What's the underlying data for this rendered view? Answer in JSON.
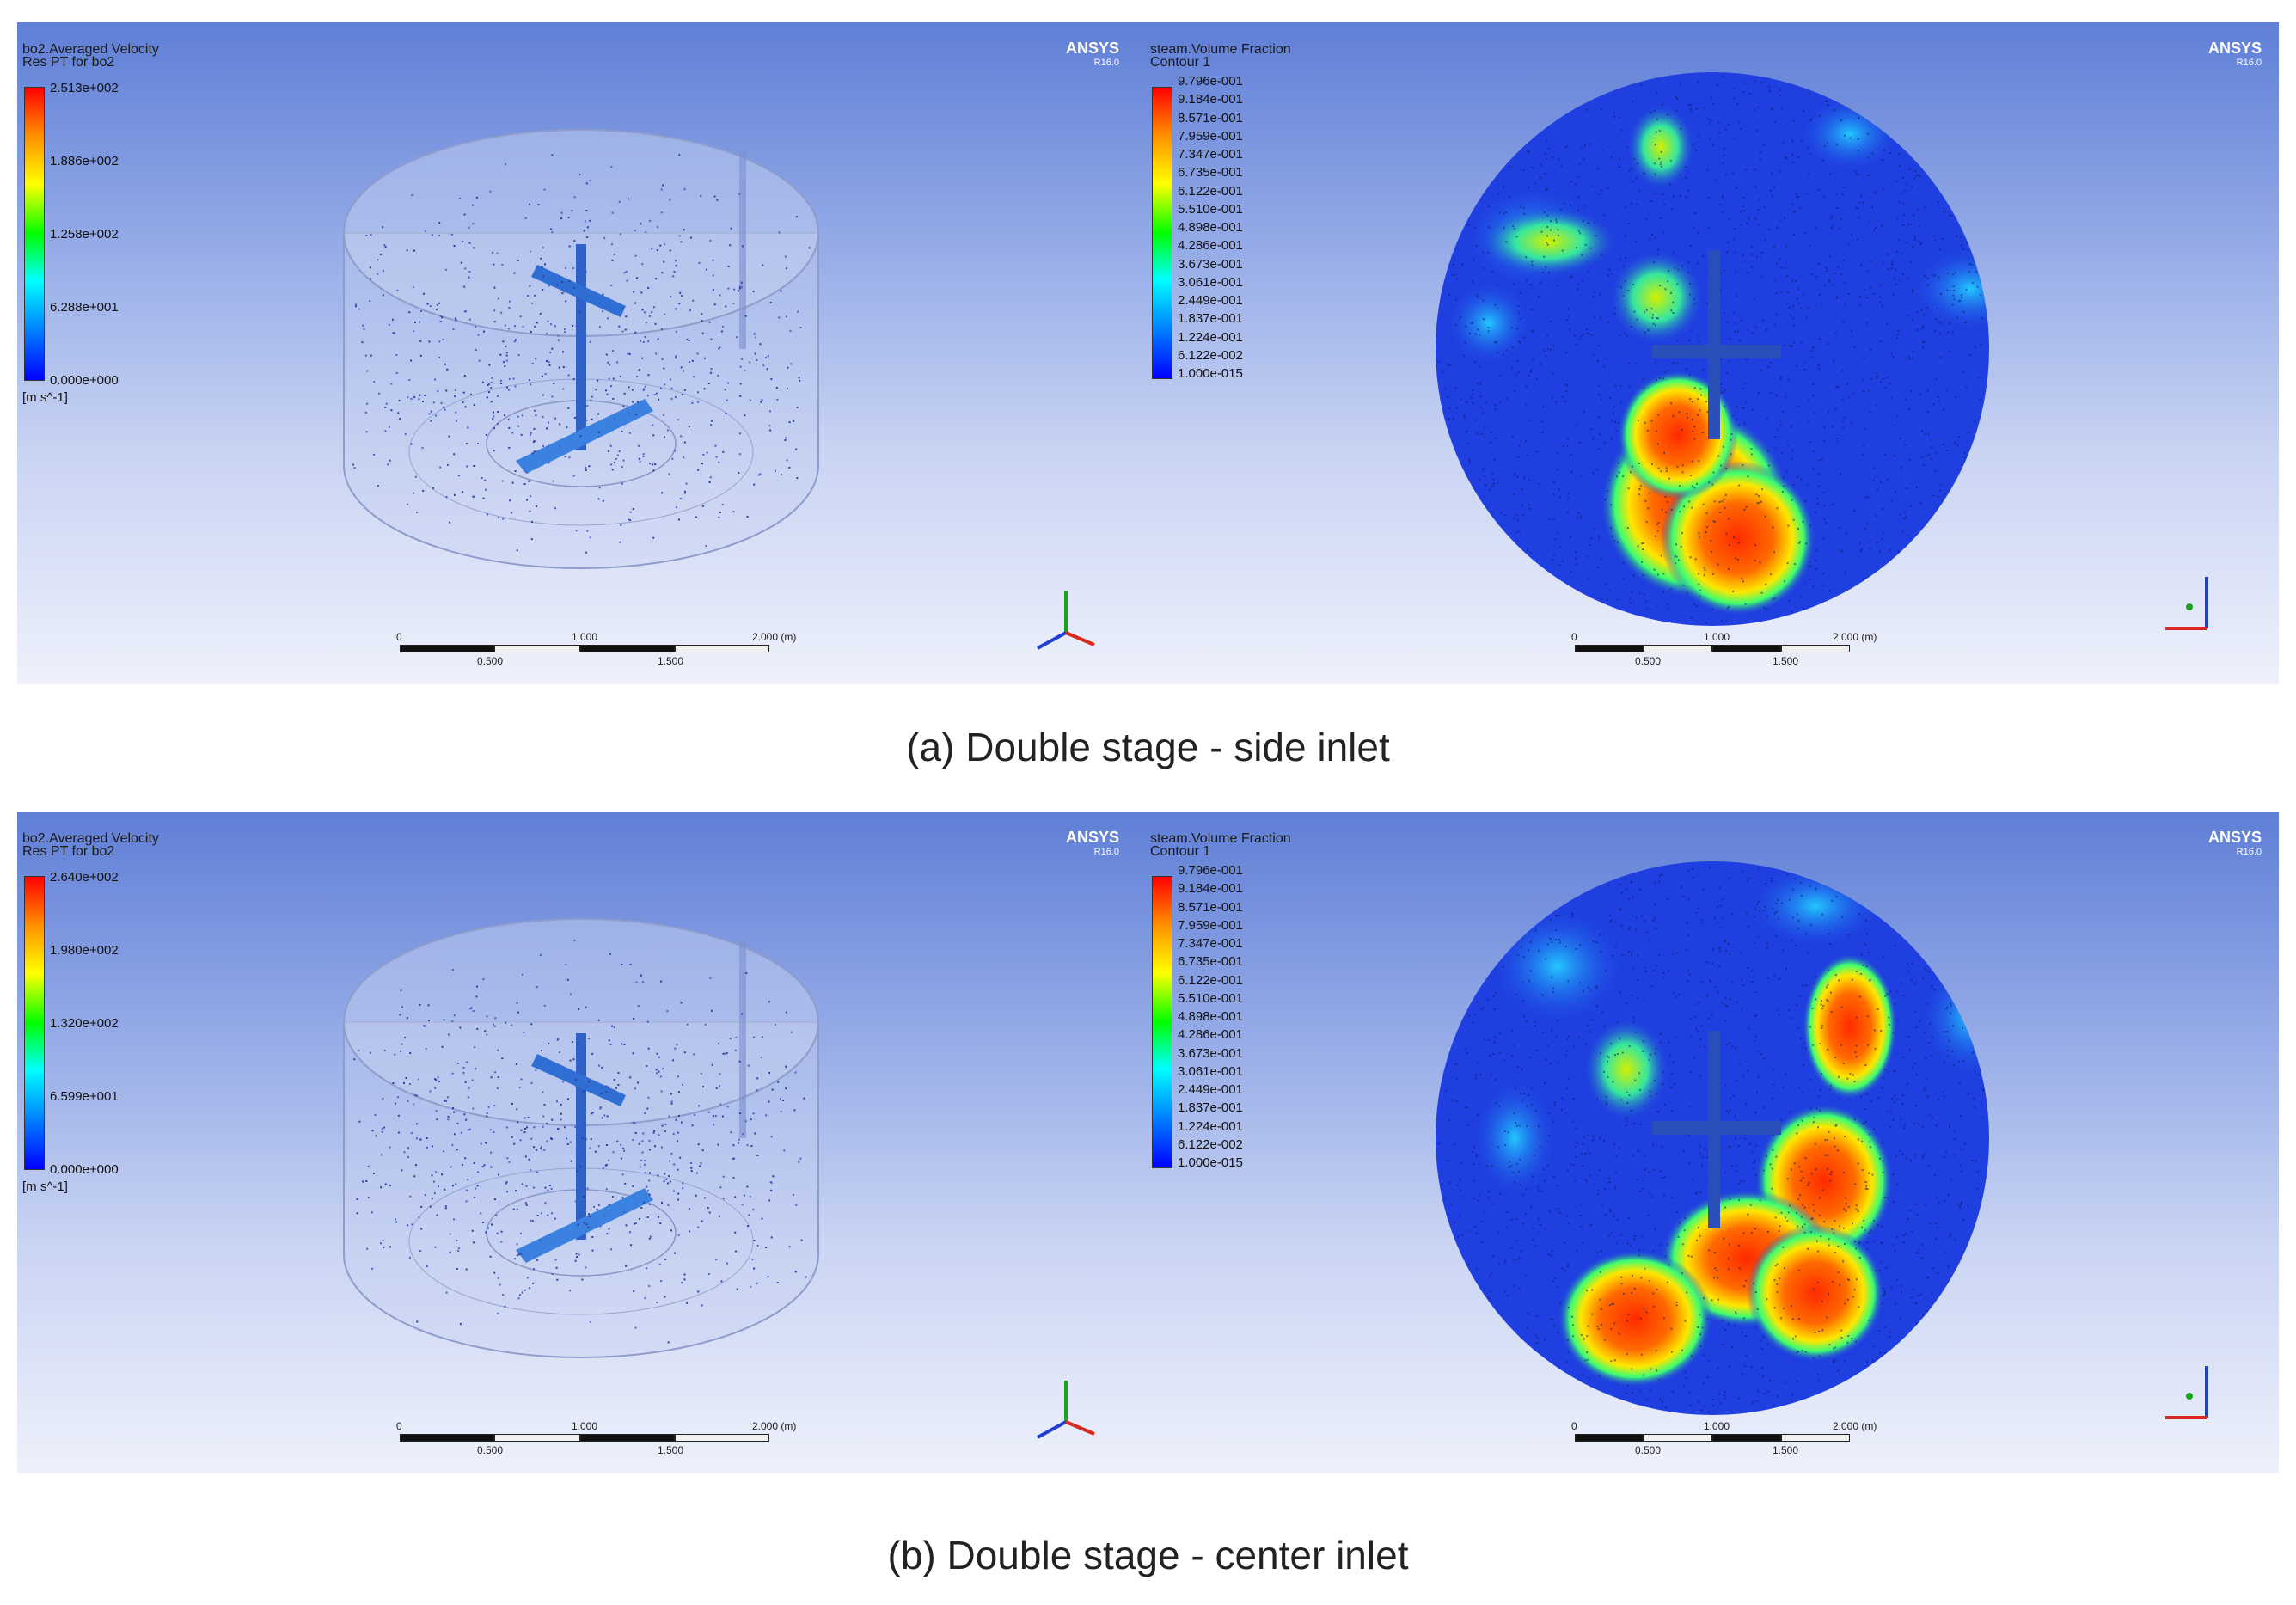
{
  "panels": [
    {
      "left": {
        "legend_title_1": "bo2.Averaged Velocity",
        "legend_title_2": "Res PT for bo2",
        "ticks": [
          "2.513e+002",
          "1.886e+002",
          "1.258e+002",
          "6.288e+001",
          "0.000e+000"
        ],
        "unit": "[m s^-1]",
        "ansys": "ANSYS",
        "ansys_ver": "R16.0",
        "scale_labels": [
          "0",
          "1.000",
          "2.000 (m)"
        ],
        "scale_sub_labels": [
          "0.500",
          "1.500"
        ]
      },
      "right": {
        "legend_title_1": "steam.Volume Fraction",
        "legend_title_2": "Contour 1",
        "ticks": [
          "9.796e-001",
          "9.184e-001",
          "8.571e-001",
          "7.959e-001",
          "7.347e-001",
          "6.735e-001",
          "6.122e-001",
          "5.510e-001",
          "4.898e-001",
          "4.286e-001",
          "3.673e-001",
          "3.061e-001",
          "2.449e-001",
          "1.837e-001",
          "1.224e-001",
          "6.122e-002",
          "1.000e-015"
        ],
        "ansys": "ANSYS",
        "ansys_ver": "R16.0",
        "scale_labels": [
          "0",
          "1.000",
          "2.000 (m)"
        ],
        "scale_sub_labels": [
          "0.500",
          "1.500"
        ]
      },
      "caption": "(a) Double stage - side inlet"
    },
    {
      "left": {
        "legend_title_1": "bo2.Averaged Velocity",
        "legend_title_2": "Res PT for bo2",
        "ticks": [
          "2.640e+002",
          "1.980e+002",
          "1.320e+002",
          "6.599e+001",
          "0.000e+000"
        ],
        "unit": "[m s^-1]",
        "ansys": "ANSYS",
        "ansys_ver": "R16.0",
        "scale_labels": [
          "0",
          "1.000",
          "2.000 (m)"
        ],
        "scale_sub_labels": [
          "0.500",
          "1.500"
        ]
      },
      "right": {
        "legend_title_1": "steam.Volume Fraction",
        "legend_title_2": "Contour 1",
        "ticks": [
          "9.796e-001",
          "9.184e-001",
          "8.571e-001",
          "7.959e-001",
          "7.347e-001",
          "6.735e-001",
          "6.122e-001",
          "5.510e-001",
          "4.898e-001",
          "4.286e-001",
          "3.673e-001",
          "3.061e-001",
          "2.449e-001",
          "1.837e-001",
          "1.224e-001",
          "6.122e-002",
          "1.000e-015"
        ],
        "ansys": "ANSYS",
        "ansys_ver": "R16.0",
        "scale_labels": [
          "0",
          "1.000",
          "2.000 (m)"
        ],
        "scale_sub_labels": [
          "0.500",
          "1.500"
        ]
      },
      "caption": "(b) Double stage - center inlet"
    }
  ],
  "colors": {
    "background_top": "#5f7fd6",
    "background_bottom": "#eef1fb",
    "contour_low": "#1f3fe0",
    "contour_high": "#ff2a00"
  }
}
